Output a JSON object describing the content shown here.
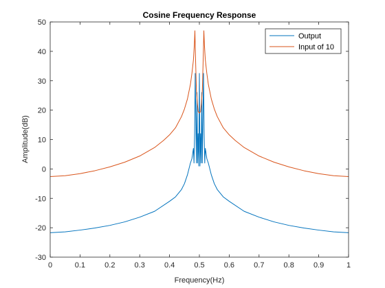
{
  "chart_data": {
    "type": "line",
    "title": "Cosine Frequency Response",
    "xlabel": "Frequency(Hz)",
    "ylabel": "Amplitude(dB)",
    "xlim": [
      0,
      1
    ],
    "ylim": [
      -30,
      50
    ],
    "xticks": [
      0,
      0.1,
      0.2,
      0.3,
      0.4,
      0.5,
      0.6,
      0.7,
      0.8,
      0.9,
      1
    ],
    "xtick_labels": [
      "0",
      "0.1",
      "0.2",
      "0.3",
      "0.4",
      "0.5",
      "0.6",
      "0.7",
      "0.8",
      "0.9",
      "1"
    ],
    "yticks": [
      -30,
      -20,
      -10,
      0,
      10,
      20,
      30,
      40,
      50
    ],
    "ytick_labels": [
      "-30",
      "-20",
      "-10",
      "0",
      "10",
      "20",
      "30",
      "40",
      "50"
    ],
    "grid": false,
    "legend_position": "top-right",
    "series": [
      {
        "name": "Output",
        "color": "#0072BD",
        "x": [
          0,
          0.05,
          0.1,
          0.15,
          0.2,
          0.25,
          0.3,
          0.35,
          0.4,
          0.42,
          0.44,
          0.45,
          0.46,
          0.47,
          0.475,
          0.48,
          0.482,
          0.484,
          0.486,
          0.488,
          0.49,
          0.492,
          0.494,
          0.496,
          0.498,
          0.5,
          0.502,
          0.504,
          0.506,
          0.508,
          0.51,
          0.512,
          0.514,
          0.516,
          0.518,
          0.52,
          0.525,
          0.53,
          0.54,
          0.55,
          0.56,
          0.58,
          0.6,
          0.65,
          0.7,
          0.75,
          0.8,
          0.85,
          0.9,
          0.95,
          1
        ],
        "y": [
          -21.7,
          -21.4,
          -20.8,
          -20.1,
          -19.2,
          -18.0,
          -16.4,
          -14.4,
          -11.0,
          -9.5,
          -7.0,
          -5.0,
          -2.0,
          2.0,
          3.5,
          7.0,
          2.0,
          12.0,
          32.5,
          18.0,
          2.0,
          26.0,
          2.0,
          12.0,
          1.0,
          32.5,
          1.0,
          12.0,
          2.0,
          26.0,
          2.0,
          18.0,
          32.5,
          12.0,
          2.0,
          7.0,
          3.5,
          2.0,
          -2.0,
          -5.0,
          -7.0,
          -9.5,
          -11.0,
          -14.4,
          -16.4,
          -18.0,
          -19.2,
          -20.1,
          -20.8,
          -21.4,
          -21.7
        ]
      },
      {
        "name": "Input of 10",
        "color": "#D95319",
        "x": [
          0,
          0.05,
          0.1,
          0.15,
          0.2,
          0.25,
          0.3,
          0.35,
          0.38,
          0.4,
          0.42,
          0.44,
          0.45,
          0.46,
          0.47,
          0.475,
          0.48,
          0.483,
          0.485,
          0.487,
          0.49,
          0.493,
          0.496,
          0.5,
          0.504,
          0.507,
          0.51,
          0.513,
          0.515,
          0.517,
          0.52,
          0.525,
          0.53,
          0.54,
          0.55,
          0.56,
          0.58,
          0.6,
          0.62,
          0.65,
          0.7,
          0.75,
          0.8,
          0.85,
          0.9,
          0.95,
          1
        ],
        "y": [
          -2.6,
          -2.3,
          -1.6,
          -0.6,
          0.7,
          2.3,
          4.4,
          7.3,
          9.7,
          11.6,
          14.0,
          17.8,
          20.4,
          23.8,
          28.8,
          32.5,
          37.0,
          42.0,
          47.0,
          38.0,
          27.0,
          22.5,
          19.5,
          19.0,
          19.5,
          22.5,
          27.0,
          38.0,
          47.0,
          42.0,
          37.0,
          32.5,
          28.8,
          23.8,
          20.4,
          17.8,
          14.0,
          11.6,
          9.7,
          7.3,
          4.4,
          2.3,
          0.7,
          -0.6,
          -1.6,
          -2.3,
          -2.6
        ]
      }
    ]
  }
}
